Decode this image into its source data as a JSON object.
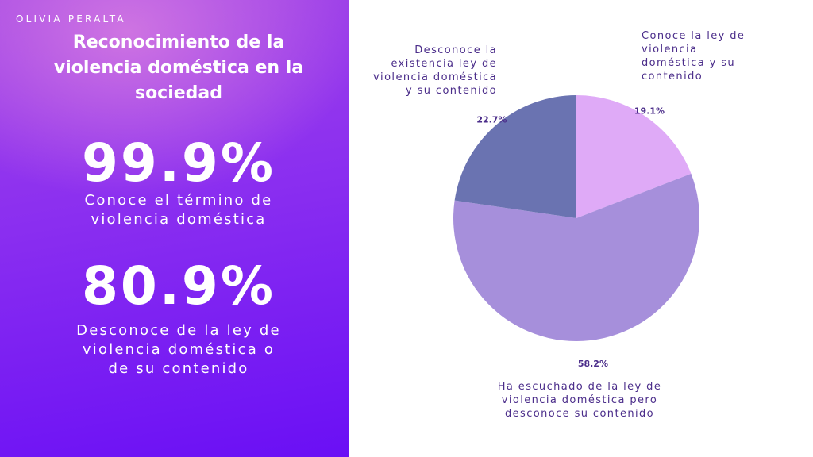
{
  "slide": {
    "author": "OLIVIA PERALTA",
    "title": "Reconocimiento de la violencia doméstica en la sociedad",
    "stats": [
      {
        "value": "99.9%",
        "label": "Conoce el término de\nviolencia doméstica"
      },
      {
        "value": "80.9%",
        "label": "Desconoce de la ley de\nviolencia doméstica o\nde su contenido"
      }
    ],
    "colors": {
      "gradient_top": "#a245e6",
      "gradient_bottom": "#6a0ff5",
      "text_dark": "#4b2d8a"
    }
  },
  "chart_data": {
    "type": "pie",
    "start_angle_deg": 0,
    "direction": "clockwise",
    "slices": [
      {
        "label": "Conoce la ley de\nviolencia\ndoméstica y su\ncontenido",
        "value": 19.1,
        "display": "19.1%",
        "color": "#dfaaf7"
      },
      {
        "label": "Ha escuchado de la ley de\nviolencia doméstica pero\ndesconoce su contenido",
        "value": 58.2,
        "display": "58.2%",
        "color": "#a68fdb"
      },
      {
        "label": "Desconoce la\nexistencia ley de\nviolencia doméstica\ny su contenido",
        "value": 22.7,
        "display": "22.7%",
        "color": "#6a73b1"
      }
    ]
  }
}
